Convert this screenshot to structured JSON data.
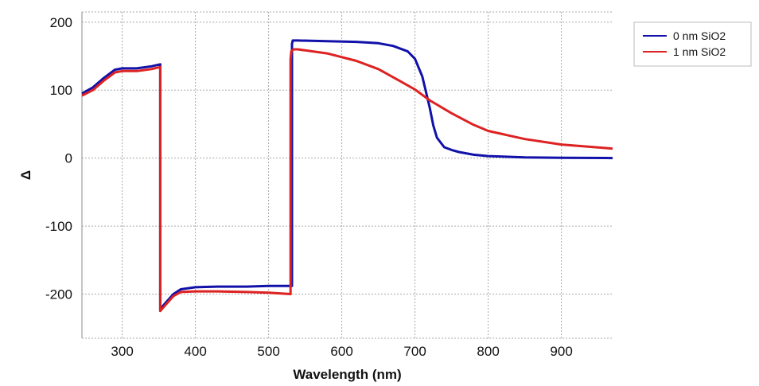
{
  "chart_data": {
    "type": "line",
    "title": "",
    "xlabel": "Wavelength (nm)",
    "ylabel": "Δ",
    "xlim": [
      245,
      970
    ],
    "ylim": [
      -265,
      215
    ],
    "xticks": [
      300,
      400,
      500,
      600,
      700,
      800,
      900
    ],
    "yticks": [
      200,
      100,
      0,
      -100,
      -200
    ],
    "grid": true,
    "legend_position": "top-right outside",
    "series": [
      {
        "name": "0 nm SiO2",
        "color": "#1111aa",
        "x": [
          245,
          260,
          275,
          290,
          300,
          320,
          340,
          352,
          352,
          360,
          370,
          380,
          400,
          430,
          470,
          500,
          532,
          532,
          533,
          534,
          540,
          580,
          620,
          650,
          670,
          690,
          700,
          710,
          720,
          725,
          730,
          740,
          750,
          760,
          780,
          800,
          850,
          900,
          970
        ],
        "y": [
          95,
          104,
          118,
          130,
          132,
          132,
          135,
          138,
          -222,
          -212,
          -200,
          -193,
          -190,
          -189,
          -189,
          -188,
          -188,
          168,
          173,
          173,
          173,
          172,
          171,
          169,
          165,
          157,
          146,
          120,
          75,
          48,
          30,
          16,
          12,
          9,
          5,
          3,
          1,
          0.5,
          0
        ]
      },
      {
        "name": "1 nm SiO2",
        "color": "#dd2222",
        "x": [
          245,
          260,
          275,
          290,
          300,
          320,
          340,
          352,
          352,
          360,
          370,
          380,
          400,
          430,
          470,
          500,
          530,
          530,
          531,
          534,
          540,
          580,
          620,
          650,
          680,
          700,
          720,
          750,
          780,
          800,
          850,
          900,
          970
        ],
        "y": [
          92,
          100,
          114,
          126,
          128,
          128,
          131,
          134,
          -225,
          -215,
          -203,
          -197,
          -196,
          -196,
          -197,
          -198,
          -200,
          145,
          157,
          160,
          160,
          154,
          143,
          131,
          113,
          101,
          85,
          66,
          49,
          40,
          28,
          20,
          14
        ]
      }
    ]
  }
}
